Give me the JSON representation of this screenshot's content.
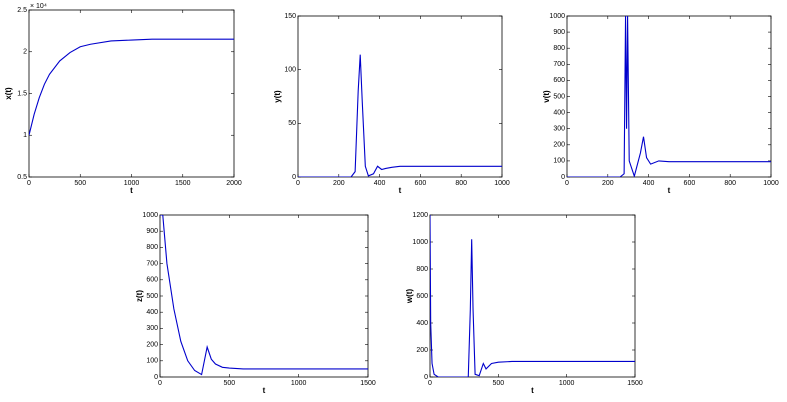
{
  "chart_data": [
    {
      "type": "line",
      "xlabel": "t",
      "ylabel": "x(t)",
      "axis_multiplier": "× 10⁴",
      "x": [
        0,
        50,
        100,
        150,
        200,
        300,
        400,
        500,
        600,
        800,
        1000,
        1200,
        1500,
        2000
      ],
      "series": [
        {
          "color": "#0000cc",
          "values": [
            1.0,
            1.25,
            1.45,
            1.61,
            1.73,
            1.89,
            1.99,
            2.06,
            2.09,
            2.13,
            2.14,
            2.15,
            2.15,
            2.15
          ]
        }
      ],
      "xlim": [
        0,
        2000
      ],
      "xticks": [
        0,
        500,
        1000,
        1500,
        2000
      ],
      "ylim": [
        0.5,
        2.5
      ],
      "yticks": [
        0.5,
        1,
        1.5,
        2,
        2.5
      ]
    },
    {
      "type": "line",
      "xlabel": "t",
      "ylabel": "y(t)",
      "x": [
        0,
        100,
        200,
        260,
        280,
        295,
        305,
        315,
        330,
        345,
        370,
        390,
        410,
        430,
        460,
        500,
        600,
        800,
        1000
      ],
      "series": [
        {
          "color": "#0000cc",
          "values": [
            0,
            0,
            0,
            0,
            5,
            80,
            114,
            70,
            10,
            1,
            3,
            10,
            7,
            8,
            9,
            10,
            10,
            10,
            10
          ]
        }
      ],
      "xlim": [
        0,
        1000
      ],
      "xticks": [
        0,
        200,
        400,
        600,
        800,
        1000
      ],
      "ylim": [
        0,
        150
      ],
      "yticks": [
        0,
        50,
        100,
        150
      ]
    },
    {
      "type": "line",
      "xlabel": "t",
      "ylabel": "v(t)",
      "x": [
        0,
        100,
        200,
        260,
        280,
        287,
        292,
        297,
        305,
        330,
        360,
        375,
        390,
        410,
        450,
        500,
        600,
        800,
        1000
      ],
      "series": [
        {
          "color": "#0000cc",
          "values": [
            0,
            0,
            0,
            0,
            20,
            1000,
            300,
            1000,
            100,
            5,
            150,
            250,
            120,
            80,
            100,
            95,
            95,
            95,
            95
          ]
        }
      ],
      "xlim": [
        0,
        1000
      ],
      "xticks": [
        0,
        200,
        400,
        600,
        800,
        1000
      ],
      "ylim": [
        0,
        1000
      ],
      "yticks": [
        0,
        100,
        200,
        300,
        400,
        500,
        600,
        700,
        800,
        900,
        1000
      ]
    },
    {
      "type": "line",
      "xlabel": "t",
      "ylabel": "z(t)",
      "x": [
        0,
        20,
        50,
        100,
        150,
        200,
        250,
        300,
        320,
        340,
        370,
        400,
        450,
        500,
        600,
        800,
        1000,
        1500
      ],
      "series": [
        {
          "color": "#0000cc",
          "values": [
            1000,
            1000,
            700,
            420,
            220,
            100,
            40,
            15,
            100,
            185,
            110,
            80,
            60,
            55,
            50,
            50,
            50,
            50
          ]
        }
      ],
      "xlim": [
        0,
        1500
      ],
      "xticks": [
        0,
        500,
        1000,
        1500
      ],
      "ylim": [
        0,
        1000
      ],
      "yticks": [
        0,
        100,
        200,
        300,
        400,
        500,
        600,
        700,
        800,
        900,
        1000
      ]
    },
    {
      "type": "line",
      "xlabel": "t",
      "ylabel": "w(t)",
      "x": [
        0,
        5,
        15,
        30,
        60,
        100,
        200,
        280,
        295,
        305,
        315,
        330,
        360,
        390,
        410,
        450,
        500,
        600,
        800,
        1000,
        1500
      ],
      "series": [
        {
          "color": "#0000cc",
          "values": [
            1200,
            400,
            100,
            20,
            0,
            0,
            0,
            0,
            500,
            1020,
            500,
            20,
            10,
            100,
            60,
            100,
            110,
            115,
            115,
            115,
            115
          ]
        }
      ],
      "xlim": [
        0,
        1500
      ],
      "xticks": [
        0,
        500,
        1000,
        1500
      ],
      "ylim": [
        0,
        1200
      ],
      "yticks": [
        0,
        200,
        400,
        600,
        800,
        1000,
        1200
      ]
    }
  ]
}
